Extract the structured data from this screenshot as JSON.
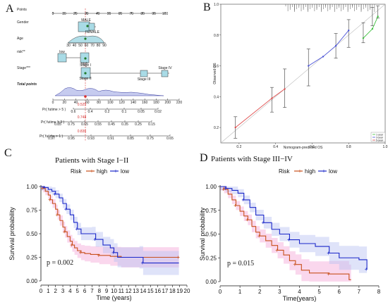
{
  "colors": {
    "high": "#c8501c",
    "low": "#1a27c9",
    "ci_high": "#f4a6d6",
    "ci_low": "#b9c0f2",
    "box": "#a9dbe6",
    "calib1": "#e05050",
    "calib2": "#4b53d8",
    "calib3": "#3cbf3c"
  },
  "panels": {
    "A": {
      "letter": "A",
      "rows": {
        "points": "Points",
        "gender": "Gender",
        "age": "Age",
        "risk": "risk**",
        "stage": "Stage***",
        "total": "Total points",
        "pred5": "Pr( futime > 5 )",
        "pred3": "Pr( futime > 3 )",
        "pred1": "Pr( futime > 1 )"
      },
      "points_ticks": [
        "0",
        "10",
        "20",
        "30",
        "40",
        "50",
        "60",
        "70",
        "80",
        "90",
        "100"
      ],
      "age_ticks": [
        "30",
        "40",
        "50",
        "60",
        "70",
        "80",
        "90"
      ],
      "total_ticks": [
        "0",
        "20",
        "40",
        "60",
        "80",
        "100",
        "120",
        "140",
        "160",
        "180",
        "200",
        "220"
      ],
      "pred5_ticks": [
        "0.6",
        "0.4",
        "0.2",
        "0.1",
        "0.05",
        "0.02"
      ],
      "pred3_ticks": [
        "0.85",
        "0.75",
        "0.65",
        "0.55",
        "0.45",
        "0.35",
        "0.25",
        "0.15"
      ],
      "pred1_ticks": [
        "0.97",
        "0.95",
        "0.93",
        "0.91",
        "0.85",
        "0.75",
        "0.65"
      ],
      "gender_labels": [
        "MALE",
        "FEMALE"
      ],
      "risk_labels": [
        "low",
        "high"
      ],
      "stage_labels": [
        "Stage I",
        "Stage II",
        "Stage III",
        "Stage IV"
      ],
      "pred_values": {
        "five": "0.525",
        "three": "0.748",
        "one": "0.836"
      }
    },
    "B": {
      "letter": "B",
      "ylabel": "Observed OS",
      "xlabel": "Nomogram-predicted OS",
      "legend": [
        "1-year",
        "3-year",
        "5-year"
      ],
      "x_ticks": [
        "0.2",
        "0.4",
        "0.6",
        "0.8",
        "1.0"
      ],
      "y_ticks": [
        "0.2",
        "0.4",
        "0.6",
        "0.8",
        "1.0"
      ]
    },
    "C": {
      "letter": "C",
      "title": "Patients with Stage I−II",
      "pvalue": "p = 0.002"
    },
    "D": {
      "letter": "D",
      "title": "Patients with Stage III−IV",
      "pvalue": "p = 0.015"
    }
  },
  "chart_data": [
    {
      "type": "scatter",
      "panel": "B",
      "title": "",
      "xlabel": "Nomogram-predicted OS",
      "ylabel": "Observed OS",
      "xlim": [
        0.1,
        1.0
      ],
      "ylim": [
        0.1,
        1.0
      ],
      "series": [
        {
          "name": "1-year",
          "x": [
            0.88,
            0.93,
            0.96
          ],
          "y": [
            0.78,
            0.84,
            0.92
          ]
        },
        {
          "name": "3-year",
          "x": [
            0.58,
            0.66,
            0.73,
            0.8
          ],
          "y": [
            0.6,
            0.66,
            0.73,
            0.83
          ]
        },
        {
          "name": "5-year",
          "x": [
            0.18,
            0.38,
            0.45
          ],
          "y": [
            0.2,
            0.39,
            0.45
          ]
        }
      ],
      "error_bars": [
        {
          "x": 0.18,
          "lo": 0.13,
          "hi": 0.27
        },
        {
          "x": 0.38,
          "lo": 0.3,
          "hi": 0.46
        },
        {
          "x": 0.45,
          "lo": 0.33,
          "hi": 0.58
        },
        {
          "x": 0.58,
          "lo": 0.47,
          "hi": 0.71
        },
        {
          "x": 0.73,
          "lo": 0.65,
          "hi": 0.81
        },
        {
          "x": 0.8,
          "lo": 0.72,
          "hi": 0.9
        },
        {
          "x": 0.88,
          "lo": 0.75,
          "hi": 0.88
        },
        {
          "x": 0.93,
          "lo": 0.86,
          "hi": 0.98
        },
        {
          "x": 0.96,
          "lo": 0.91,
          "hi": 0.99
        }
      ],
      "legend_position": "bottom-right"
    },
    {
      "type": "line",
      "panel": "C",
      "title": "Patients with Stage I−II",
      "xlabel": "Time (years)",
      "ylabel": "Survival probability",
      "legend_title": "Risk",
      "x_ticks": [
        0,
        1,
        2,
        3,
        4,
        5,
        6,
        7,
        8,
        9,
        10,
        11,
        12,
        13,
        14,
        15,
        16,
        17,
        18,
        19,
        20
      ],
      "y_ticks": [
        "0.00",
        "0.25",
        "0.50",
        "0.75",
        "1.00"
      ],
      "xlim": [
        0,
        20
      ],
      "ylim": [
        0,
        1
      ],
      "series": [
        {
          "name": "high",
          "steps": [
            [
              0,
              1.0
            ],
            [
              0.3,
              0.98
            ],
            [
              0.6,
              0.95
            ],
            [
              1.0,
              0.91
            ],
            [
              1.3,
              0.86
            ],
            [
              1.6,
              0.82
            ],
            [
              2.0,
              0.76
            ],
            [
              2.3,
              0.7
            ],
            [
              2.6,
              0.64
            ],
            [
              3.0,
              0.57
            ],
            [
              3.3,
              0.52
            ],
            [
              3.6,
              0.47
            ],
            [
              4.0,
              0.42
            ],
            [
              4.3,
              0.38
            ],
            [
              4.6,
              0.35
            ],
            [
              5.0,
              0.32
            ],
            [
              5.5,
              0.3
            ],
            [
              6.0,
              0.29
            ],
            [
              6.8,
              0.28
            ],
            [
              8.0,
              0.27
            ],
            [
              9.5,
              0.26
            ],
            [
              11.0,
              0.25
            ],
            [
              18.9,
              0.25
            ]
          ]
        },
        {
          "name": "low",
          "steps": [
            [
              0,
              1.0
            ],
            [
              0.5,
              0.99
            ],
            [
              1.0,
              0.97
            ],
            [
              1.5,
              0.95
            ],
            [
              2.0,
              0.92
            ],
            [
              2.5,
              0.88
            ],
            [
              3.0,
              0.82
            ],
            [
              3.5,
              0.76
            ],
            [
              4.0,
              0.7
            ],
            [
              4.5,
              0.62
            ],
            [
              5.0,
              0.55
            ],
            [
              5.5,
              0.5
            ],
            [
              7.0,
              0.5
            ],
            [
              7.5,
              0.44
            ],
            [
              8.5,
              0.38
            ],
            [
              9.5,
              0.35
            ],
            [
              10.0,
              0.3
            ],
            [
              10.5,
              0.25
            ],
            [
              13.5,
              0.25
            ],
            [
              14.0,
              0.19
            ],
            [
              18.9,
              0.19
            ]
          ]
        }
      ]
    },
    {
      "type": "line",
      "panel": "D",
      "title": "Patients with Stage III−IV",
      "xlabel": "Time(years)",
      "ylabel": "Survival probability",
      "legend_title": "Risk",
      "x_ticks": [
        0,
        1,
        2,
        3,
        4,
        5,
        6,
        7,
        8
      ],
      "y_ticks": [
        "0.00",
        "0.25",
        "0.50",
        "0.75",
        "1.00"
      ],
      "xlim": [
        0,
        8
      ],
      "ylim": [
        0,
        1
      ],
      "series": [
        {
          "name": "high",
          "steps": [
            [
              0,
              1.0
            ],
            [
              0.2,
              0.97
            ],
            [
              0.4,
              0.92
            ],
            [
              0.6,
              0.86
            ],
            [
              0.8,
              0.8
            ],
            [
              1.0,
              0.74
            ],
            [
              1.2,
              0.69
            ],
            [
              1.4,
              0.65
            ],
            [
              1.6,
              0.58
            ],
            [
              1.8,
              0.52
            ],
            [
              2.0,
              0.48
            ],
            [
              2.3,
              0.43
            ],
            [
              2.6,
              0.38
            ],
            [
              2.9,
              0.33
            ],
            [
              3.2,
              0.28
            ],
            [
              3.5,
              0.22
            ],
            [
              3.8,
              0.18
            ],
            [
              4.1,
              0.12
            ],
            [
              4.5,
              0.09
            ],
            [
              5.5,
              0.08
            ],
            [
              6.5,
              0.02
            ],
            [
              6.6,
              0.02
            ]
          ]
        },
        {
          "name": "low",
          "steps": [
            [
              0,
              1.0
            ],
            [
              0.3,
              0.98
            ],
            [
              0.6,
              0.96
            ],
            [
              0.9,
              0.93
            ],
            [
              1.2,
              0.86
            ],
            [
              1.5,
              0.78
            ],
            [
              1.8,
              0.7
            ],
            [
              2.2,
              0.62
            ],
            [
              2.6,
              0.55
            ],
            [
              3.0,
              0.5
            ],
            [
              3.5,
              0.44
            ],
            [
              4.0,
              0.4
            ],
            [
              4.8,
              0.37
            ],
            [
              5.5,
              0.3
            ],
            [
              6.0,
              0.25
            ],
            [
              7.0,
              0.23
            ],
            [
              7.4,
              0.13
            ]
          ]
        }
      ]
    }
  ]
}
